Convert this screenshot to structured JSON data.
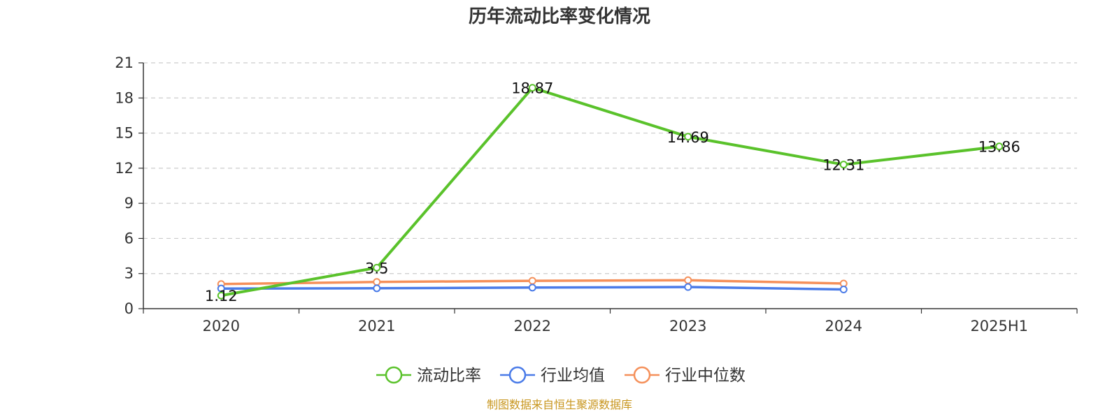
{
  "chart_data": {
    "type": "line",
    "title": "历年流动比率变化情况",
    "categories": [
      "2020",
      "2021",
      "2022",
      "2023",
      "2024",
      "2025H1"
    ],
    "ylim": [
      0,
      21
    ],
    "yticks": [
      0,
      3,
      6,
      9,
      12,
      15,
      18,
      21
    ],
    "grid": "horizontal-dashed",
    "legend_position": "bottom",
    "series": [
      {
        "name": "流动比率",
        "color": "#5ac22b",
        "values": [
          1.12,
          3.5,
          18.87,
          14.69,
          12.31,
          13.86
        ],
        "labels": [
          "1.12",
          "3.5",
          "18.87",
          "14.69",
          "12.31",
          "13.86"
        ]
      },
      {
        "name": "行业均值",
        "color": "#4a7be8",
        "values": [
          1.72,
          1.74,
          1.8,
          1.85,
          1.64,
          null
        ]
      },
      {
        "name": "行业中位数",
        "color": "#f5905a",
        "values": [
          2.1,
          2.28,
          2.38,
          2.43,
          2.15,
          null
        ]
      }
    ]
  },
  "footer": {
    "source": "制图数据来自恒生聚源数据库"
  }
}
